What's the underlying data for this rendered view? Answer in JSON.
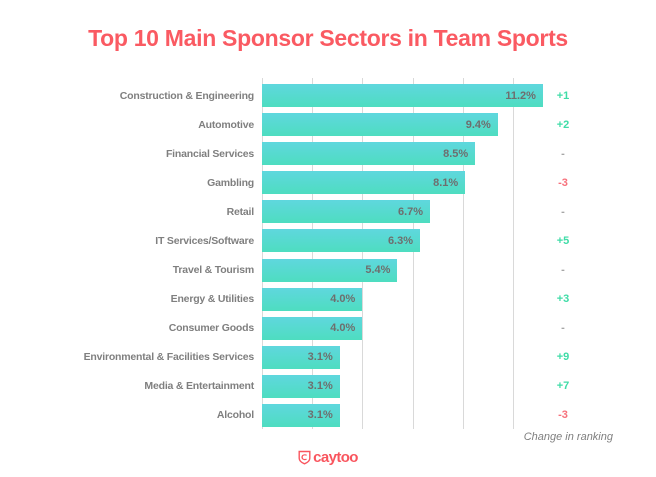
{
  "title": {
    "text": "Top 10 Main Sponsor Sectors in Team Sports",
    "color": "#fa5a62"
  },
  "chart_data": {
    "type": "bar",
    "orientation": "horizontal",
    "title": "Top 10 Main Sponsor Sectors in Team Sports",
    "categories": [
      "Construction & Engineering",
      "Automotive",
      "Financial Services",
      "Gambling",
      "Retail",
      "IT Services/Software",
      "Travel & Tourism",
      "Energy & Utilities",
      "Consumer Goods",
      "Environmental & Facilities Services",
      "Media & Entertainment",
      "Alcohol"
    ],
    "values": [
      11.2,
      9.4,
      8.5,
      8.1,
      6.7,
      6.3,
      5.4,
      4.0,
      4.0,
      3.1,
      3.1,
      3.1
    ],
    "value_labels": [
      "11.2%",
      "9.4%",
      "8.5%",
      "8.1%",
      "6.7%",
      "6.3%",
      "5.4%",
      "4.0%",
      "4.0%",
      "3.1%",
      "3.1%",
      "3.1%"
    ],
    "ranking_change": [
      "+1",
      "+2",
      "-",
      "-3",
      "-",
      "+5",
      "-",
      "+3",
      "-",
      "+9",
      "+7",
      "-3"
    ],
    "xlabel": "",
    "ylabel": "",
    "xlim": [
      0,
      12
    ],
    "gridline_step": 2,
    "grid": "vertical-only",
    "legend": "none",
    "axis_tick_labels": "none",
    "colors": {
      "bar_top": "#5fd7de",
      "bar_bottom": "#4eddc0",
      "bar_value_label": "#6e6e6e",
      "category_label": "#7f7f7f",
      "gridline": "#d9d9d9",
      "change_positive": "#3fdca7",
      "change_negative": "#f7707b",
      "change_neutral": "#a6a6a6",
      "title": "#fa5a62"
    }
  },
  "footnote": {
    "text": "Change in ranking"
  },
  "footer": {
    "logo_text": "caytoo",
    "logo_color": "#f9555e",
    "logo_icon": "shield-icon"
  }
}
